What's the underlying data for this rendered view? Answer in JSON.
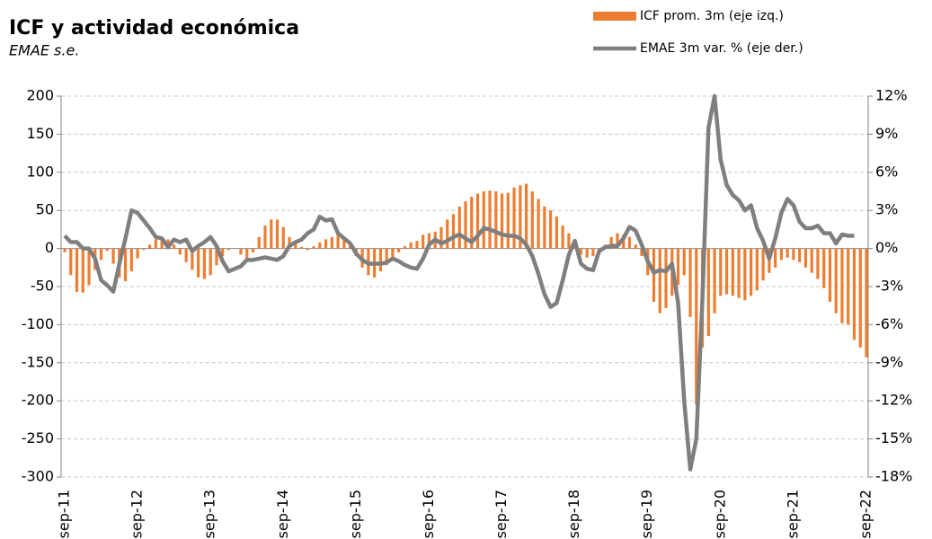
{
  "chart_data": {
    "type": "bar-line",
    "title": "ICF y actividad económica",
    "subtitle": "EMAE s.e.",
    "categories": [
      "sep-11",
      null,
      null,
      null,
      null,
      null,
      null,
      null,
      null,
      null,
      null,
      null,
      "sep-12",
      null,
      null,
      null,
      null,
      null,
      null,
      null,
      null,
      null,
      null,
      null,
      "sep-13",
      null,
      null,
      null,
      null,
      null,
      null,
      null,
      null,
      null,
      null,
      null,
      "sep-14",
      null,
      null,
      null,
      null,
      null,
      null,
      null,
      null,
      null,
      null,
      null,
      "sep-15",
      null,
      null,
      null,
      null,
      null,
      null,
      null,
      null,
      null,
      null,
      null,
      "sep-16",
      null,
      null,
      null,
      null,
      null,
      null,
      null,
      null,
      null,
      null,
      null,
      "sep-17",
      null,
      null,
      null,
      null,
      null,
      null,
      null,
      null,
      null,
      null,
      null,
      "sep-18",
      null,
      null,
      null,
      null,
      null,
      null,
      null,
      null,
      null,
      null,
      null,
      "sep-19",
      null,
      null,
      null,
      null,
      null,
      null,
      null,
      null,
      null,
      null,
      null,
      "sep-20",
      null,
      null,
      null,
      null,
      null,
      null,
      null,
      null,
      null,
      null,
      null,
      "sep-21",
      null,
      null,
      null,
      null,
      null,
      null,
      null,
      null,
      null,
      null,
      null,
      "sep-22"
    ],
    "series": [
      {
        "name": "ICF prom. 3m (eje izq.)",
        "color": "#ed7d31",
        "kind": "bar",
        "values": [
          -5,
          -35,
          -57,
          -58,
          -48,
          -28,
          -15,
          -3,
          -20,
          -38,
          -43,
          -30,
          -13,
          -2,
          5,
          12,
          15,
          12,
          5,
          -8,
          -18,
          -28,
          -38,
          -40,
          -35,
          -22,
          -10,
          -2,
          0,
          -8,
          -15,
          -5,
          15,
          30,
          38,
          38,
          28,
          15,
          8,
          2,
          -2,
          3,
          8,
          12,
          15,
          18,
          15,
          5,
          -10,
          -25,
          -35,
          -38,
          -30,
          -22,
          -12,
          -5,
          3,
          8,
          10,
          18,
          20,
          22,
          28,
          38,
          45,
          55,
          62,
          68,
          72,
          75,
          76,
          75,
          72,
          73,
          80,
          83,
          85,
          75,
          65,
          55,
          50,
          42,
          30,
          20,
          5,
          -8,
          -12,
          -10,
          -5,
          5,
          15,
          20,
          18,
          15,
          5,
          -10,
          -35,
          -70,
          -85,
          -78,
          -62,
          -48,
          -35,
          -90,
          -205,
          -130,
          -115,
          -85,
          -62,
          -60,
          -62,
          -65,
          -68,
          -62,
          -55,
          -42,
          -32,
          -25,
          -15,
          -12,
          -15,
          -18,
          -25,
          -32,
          -40,
          -52,
          -70,
          -85,
          -98,
          -100,
          -120,
          -130,
          -143
        ]
      },
      {
        "name": "EMAE 3m var. % (eje der.)",
        "color": "#7f7f7f",
        "kind": "line",
        "axis": "y2",
        "values": [
          1.0,
          0.5,
          0.5,
          0.0,
          0.0,
          -0.8,
          -2.5,
          -2.9,
          -3.4,
          -1.2,
          0.8,
          3.0,
          2.8,
          2.2,
          1.6,
          0.9,
          0.8,
          0.1,
          0.7,
          0.5,
          0.7,
          -0.2,
          0.2,
          0.5,
          0.9,
          0.2,
          -1.0,
          -1.8,
          -1.6,
          -1.4,
          -0.9,
          -0.9,
          -0.8,
          -0.7,
          -0.8,
          -0.9,
          -0.6,
          0.2,
          0.5,
          0.7,
          1.2,
          1.5,
          2.5,
          2.2,
          2.3,
          1.2,
          0.8,
          0.4,
          -0.4,
          -0.9,
          -1.2,
          -1.2,
          -1.2,
          -1.1,
          -0.8,
          -1.0,
          -1.3,
          -1.5,
          -1.6,
          -0.8,
          0.3,
          0.7,
          0.4,
          0.6,
          0.9,
          1.1,
          0.8,
          0.5,
          1.0,
          1.6,
          1.5,
          1.3,
          1.1,
          1.0,
          1.0,
          0.8,
          0.3,
          -0.6,
          -2.0,
          -3.6,
          -4.6,
          -4.3,
          -2.5,
          -0.5,
          0.6,
          -1.2,
          -1.6,
          -1.7,
          -0.2,
          0.1,
          0.2,
          0.2,
          0.8,
          1.7,
          1.4,
          0.3,
          -1.0,
          -1.9,
          -1.7,
          -1.8,
          -1.2,
          -4.3,
          -12.0,
          -17.4,
          -15.0,
          -4.0,
          9.5,
          12.0,
          7.0,
          5.0,
          4.2,
          3.8,
          3.0,
          3.4,
          1.6,
          0.6,
          -0.8,
          0.8,
          2.8,
          3.9,
          3.4,
          2.1,
          1.6,
          1.6,
          1.8,
          1.2,
          1.2,
          0.4,
          1.1,
          1.0,
          1.0,
          null,
          null
        ]
      }
    ],
    "ylim": [
      -300,
      200
    ],
    "yticks": [
      -300,
      -250,
      -200,
      -150,
      -100,
      -50,
      0,
      50,
      100,
      150,
      200
    ],
    "y2lim": [
      -18,
      12
    ],
    "y2ticks": [
      {
        "value": -18,
        "label": "-18%"
      },
      {
        "value": -15,
        "label": "-15%"
      },
      {
        "value": -12,
        "label": "-12%"
      },
      {
        "value": -9,
        "label": "-9%"
      },
      {
        "value": -6,
        "label": "-6%"
      },
      {
        "value": -3,
        "label": "-3%"
      },
      {
        "value": 0,
        "label": "0%"
      },
      {
        "value": 3,
        "label": "3%"
      },
      {
        "value": 6,
        "label": "6%"
      },
      {
        "value": 9,
        "label": "9%"
      },
      {
        "value": 12,
        "label": "12%"
      }
    ],
    "grid": true,
    "legend": "top-right"
  }
}
